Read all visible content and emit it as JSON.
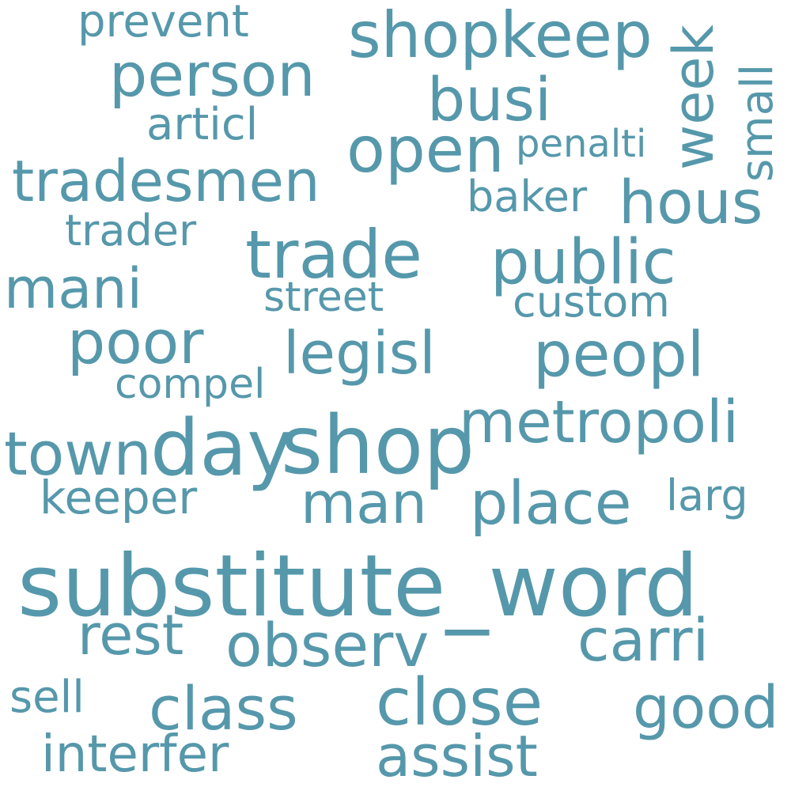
{
  "word_cloud": {
    "text_color": "#5698ab",
    "background": "#ffffff",
    "words": {
      "substitute_word": "substitute_word",
      "shop": "shop",
      "day": "day",
      "shopkeep": "shopkeep",
      "trade": "trade",
      "person": "person",
      "open": "open",
      "public": "public",
      "peopl": "peopl",
      "metropoli": "metropoli",
      "town": "town",
      "poor": "poor",
      "tradesmen": "tradesmen",
      "busi": "busi",
      "hous": "hous",
      "legisl": "legisl",
      "place": "place",
      "man": "man",
      "mani": "mani",
      "observ": "observ",
      "close": "close",
      "class": "class",
      "carri": "carri",
      "good": "good",
      "rest": "rest",
      "assist": "assist",
      "interfer": "interfer",
      "keeper": "keeper",
      "custom": "custom",
      "street": "street",
      "compel": "compel",
      "articl": "articl",
      "trader": "trader",
      "baker": "baker",
      "penalti": "penalti",
      "prevent": "prevent",
      "sell": "sell",
      "larg": "larg",
      "week": "week",
      "small": "small"
    }
  }
}
